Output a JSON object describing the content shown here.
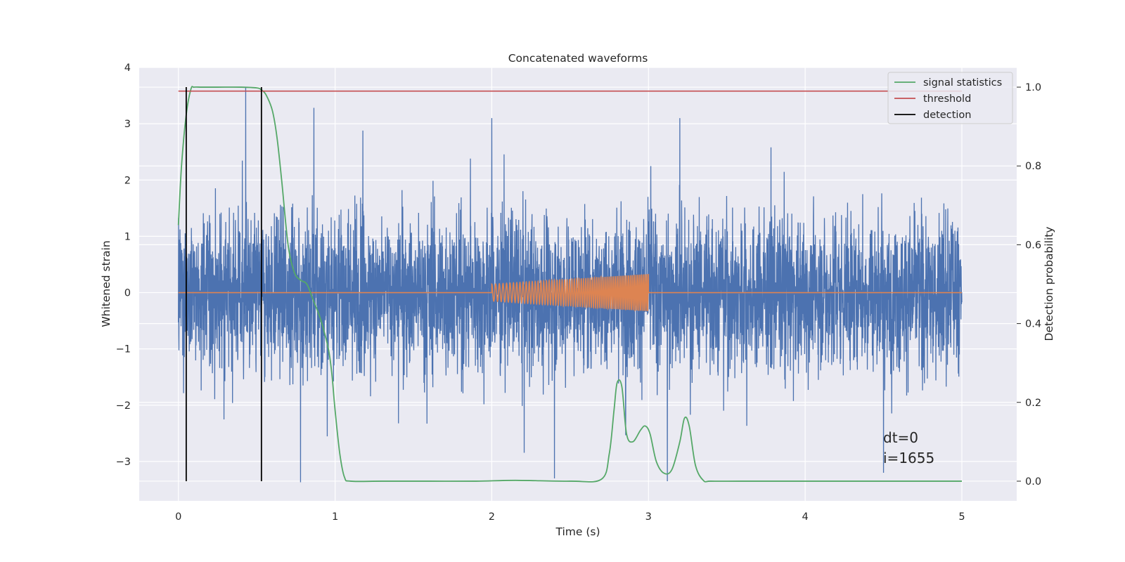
{
  "chart_data": {
    "type": "line",
    "title": "Concatenated waveforms",
    "xlabel": "Time (s)",
    "ylabel": "Whitened strain",
    "y2label": "Detection probability",
    "xlim": [
      -0.25,
      5.35
    ],
    "ylim": [
      -3.7,
      4.0
    ],
    "y2lim": [
      -0.05,
      1.05
    ],
    "xticks": [
      0,
      1,
      2,
      3,
      4,
      5
    ],
    "yticks": [
      -3,
      -2,
      -1,
      0,
      1,
      2,
      3,
      4
    ],
    "y2ticks": [
      0.0,
      0.2,
      0.4,
      0.6,
      0.8,
      1.0
    ],
    "grid": true,
    "legend_position": "top-right",
    "series": [
      {
        "name": "",
        "axis": "left",
        "color": "#4c72b0",
        "description": "whitened strain noise",
        "x_range": [
          0,
          5
        ],
        "approx_range": [
          -3.4,
          3.65
        ],
        "notable_peaks": [
          [
            0.43,
            3.65
          ],
          [
            0.78,
            -3.37
          ],
          [
            3.12,
            -3.35
          ],
          [
            2.0,
            3.1
          ],
          [
            3.2,
            3.1
          ],
          [
            4.5,
            -3.2
          ]
        ]
      },
      {
        "name": "",
        "axis": "left",
        "color": "#dd8452",
        "description": "injected chirp signal",
        "x_range": [
          0,
          5
        ],
        "chirp_x_range": [
          2.0,
          3.0
        ],
        "amplitude_start": 0.15,
        "amplitude_end": 0.33
      },
      {
        "name": "signal statistics",
        "axis": "right",
        "color": "#55a868",
        "x": [
          0.0,
          0.02,
          0.05,
          0.08,
          0.1,
          0.15,
          0.25,
          0.4,
          0.5,
          0.53,
          0.56,
          0.6,
          0.63,
          0.66,
          0.7,
          0.74,
          0.78,
          0.82,
          0.86,
          0.9,
          0.93,
          0.96,
          0.98,
          1.0,
          1.03,
          1.06,
          1.1,
          1.3,
          1.6,
          1.9,
          2.15,
          2.5,
          2.7,
          2.75,
          2.78,
          2.8,
          2.83,
          2.86,
          2.9,
          2.95,
          2.98,
          3.01,
          3.05,
          3.1,
          3.15,
          3.2,
          3.23,
          3.26,
          3.3,
          3.35,
          3.4,
          3.6,
          4.0,
          4.5,
          5.0
        ],
        "y": [
          0.65,
          0.8,
          0.93,
          0.995,
          1.0,
          1.0,
          1.0,
          1.0,
          0.998,
          0.993,
          0.98,
          0.94,
          0.87,
          0.76,
          0.6,
          0.53,
          0.51,
          0.5,
          0.46,
          0.42,
          0.38,
          0.33,
          0.27,
          0.18,
          0.07,
          0.01,
          0.0,
          0.0,
          0.0,
          0.0,
          0.002,
          0.0,
          0.005,
          0.07,
          0.18,
          0.25,
          0.24,
          0.12,
          0.1,
          0.13,
          0.14,
          0.12,
          0.05,
          0.02,
          0.03,
          0.1,
          0.16,
          0.14,
          0.04,
          0.002,
          0.0,
          0.0,
          0.0,
          0.0,
          0.0
        ]
      },
      {
        "name": "threshold",
        "axis": "right",
        "color": "#c44e52",
        "x": [
          0,
          5
        ],
        "y": [
          0.99,
          0.99
        ]
      },
      {
        "name": "detection",
        "axis": "right",
        "color": "#000000",
        "type": "vlines",
        "x": [
          0.05,
          0.53
        ],
        "ymin": 0.0,
        "ymax": 1.0
      }
    ],
    "annotations": [
      "dt=0",
      "i=1655"
    ]
  }
}
